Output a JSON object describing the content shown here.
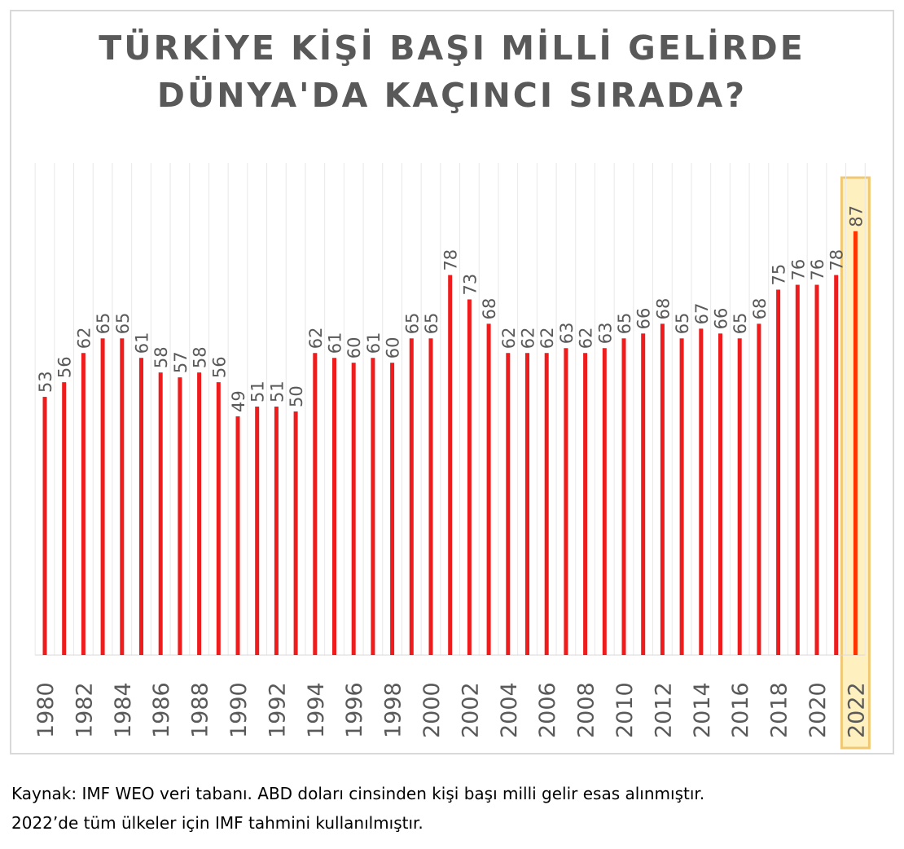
{
  "chart_data": {
    "type": "bar",
    "title": [
      "TÜRKİYE KİŞİ BAŞI MİLLİ GELİRDE",
      "DÜNYA'DA KAÇINCI SIRADA?"
    ],
    "categories": [
      1980,
      1981,
      1982,
      1983,
      1984,
      1985,
      1986,
      1987,
      1988,
      1989,
      1990,
      1991,
      1992,
      1993,
      1994,
      1995,
      1996,
      1997,
      1998,
      1999,
      2000,
      2001,
      2002,
      2003,
      2004,
      2005,
      2006,
      2007,
      2008,
      2009,
      2010,
      2011,
      2012,
      2013,
      2014,
      2015,
      2016,
      2017,
      2018,
      2019,
      2020,
      2021,
      2022
    ],
    "tick_labels": [
      "1980",
      "",
      "1982",
      "",
      "1984",
      "",
      "1986",
      "",
      "1988",
      "",
      "1990",
      "",
      "1992",
      "",
      "1994",
      "",
      "1996",
      "",
      "1998",
      "",
      "2000",
      "",
      "2002",
      "",
      "2004",
      "",
      "2006",
      "",
      "2008",
      "",
      "2010",
      "",
      "2012",
      "",
      "2014",
      "",
      "2016",
      "",
      "2018",
      "",
      "2020",
      "",
      "2022"
    ],
    "values": [
      53,
      56,
      62,
      65,
      65,
      61,
      58,
      57,
      58,
      56,
      49,
      51,
      51,
      50,
      62,
      61,
      60,
      61,
      60,
      65,
      65,
      78,
      73,
      68,
      62,
      62,
      62,
      63,
      62,
      63,
      65,
      66,
      68,
      65,
      67,
      66,
      65,
      68,
      75,
      76,
      76,
      78,
      87
    ],
    "data_labels": [
      "53",
      "56",
      "62",
      "65",
      "65",
      "61",
      "58",
      "57",
      "58",
      "56",
      "49",
      "51",
      "51",
      "50",
      "62",
      "61",
      "60",
      "61",
      "60",
      "65",
      "65",
      "78",
      "73",
      "68",
      "62",
      "62",
      "62",
      "63",
      "62",
      "63",
      "65",
      "66",
      "68",
      "65",
      "67",
      "66",
      "65",
      "68",
      "75",
      "76",
      "76",
      "78",
      "87"
    ],
    "highlight_category": 2022,
    "ylim": [
      0,
      100
    ],
    "grid": "vertical",
    "legend": "none",
    "colors": {
      "bar": "#ee1c1c",
      "bar_highlight": "#ff3300",
      "highlight_fill": "#fff0c0",
      "highlight_border": "#f0c874",
      "label": "#595959",
      "grid": "#e8e8e8",
      "baseline": "#d9d9d9"
    }
  },
  "source_note": [
    "Kaynak: IMF WEO veri tabanı. ABD doları cinsinden kişi başı milli gelir esas alınmıştır.",
    "2022’de tüm ülkeler için IMF tahmini kullanılmıştır."
  ]
}
